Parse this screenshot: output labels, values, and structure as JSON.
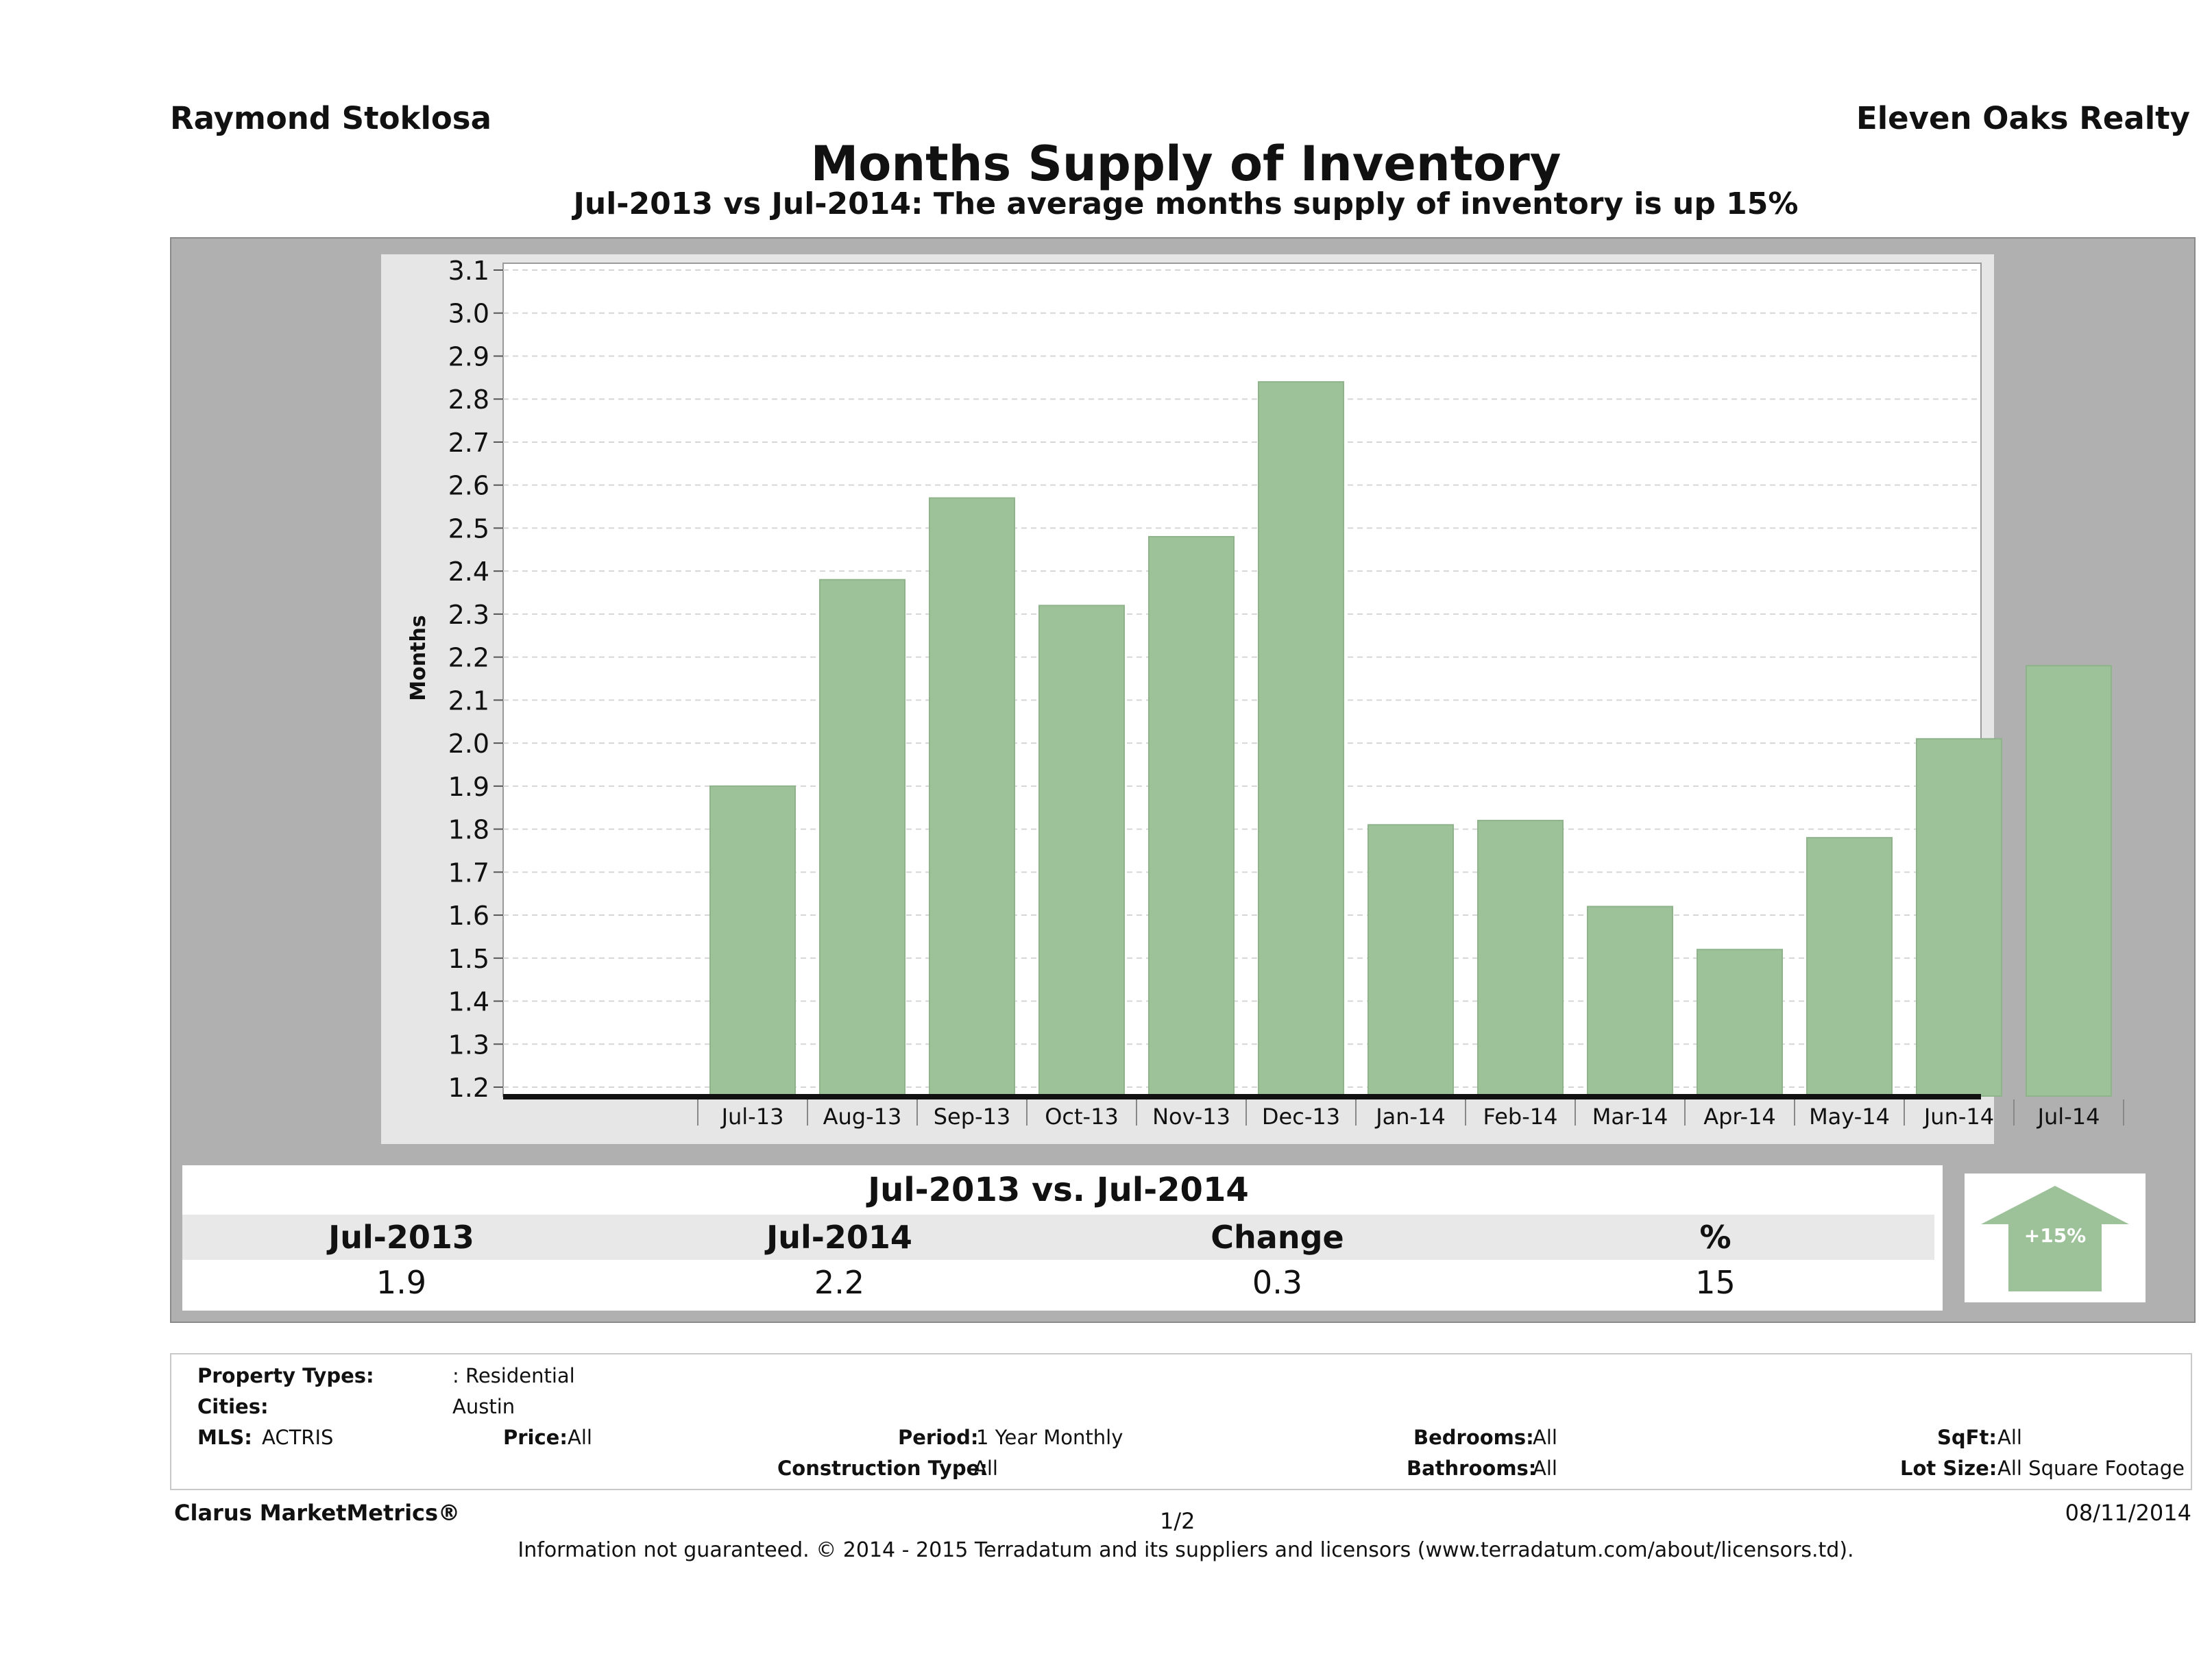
{
  "header": {
    "agent": "Raymond Stoklosa",
    "company": "Eleven Oaks Realty",
    "title": "Months Supply of Inventory",
    "subtitle": "Jul-2013 vs Jul-2014: The average months supply of inventory is up 15%"
  },
  "chart_data": {
    "type": "bar",
    "categories": [
      "Jul-13",
      "Aug-13",
      "Sep-13",
      "Oct-13",
      "Nov-13",
      "Dec-13",
      "Jan-14",
      "Feb-14",
      "Mar-14",
      "Apr-14",
      "May-14",
      "Jun-14",
      "Jul-14"
    ],
    "values": [
      1.9,
      2.38,
      2.57,
      2.32,
      2.48,
      2.84,
      1.81,
      1.82,
      1.62,
      1.52,
      1.78,
      2.01,
      2.18
    ],
    "ylabel": "Months",
    "xlabel": "",
    "ylim": [
      1.2,
      3.1
    ],
    "yticks": [
      "1.2",
      "1.3",
      "1.4",
      "1.5",
      "1.6",
      "1.7",
      "1.8",
      "1.9",
      "2.0",
      "2.1",
      "2.2",
      "2.3",
      "2.4",
      "2.5",
      "2.6",
      "2.7",
      "2.8",
      "2.9",
      "3.0",
      "3.1"
    ],
    "grid": true,
    "bar_color": "#9dc29a"
  },
  "summary": {
    "title": "Jul-2013 vs. Jul-2014",
    "headers": [
      "Jul-2013",
      "Jul-2014",
      "Change",
      "%"
    ],
    "values": [
      "1.9",
      "2.2",
      "0.3",
      "15"
    ],
    "badge": "+15%",
    "badge_icon": "up-arrow-icon"
  },
  "filters": {
    "property_types_label": "Property Types:",
    "property_types_value": ": Residential",
    "cities_label": "Cities:",
    "cities_value": "Austin",
    "mls_label": "MLS:",
    "mls_value": "ACTRIS",
    "price_label": "Price:",
    "price_value": "All",
    "period_label": "Period:",
    "period_value": "1 Year Monthly",
    "construction_label": "Construction Type:",
    "construction_value": "All",
    "bedrooms_label": "Bedrooms:",
    "bedrooms_value": "All",
    "bathrooms_label": "Bathrooms:",
    "bathrooms_value": "All",
    "sqft_label": "SqFt:",
    "sqft_value": "All",
    "lotsize_label": "Lot Size:",
    "lotsize_value": "All Square Footage"
  },
  "footer": {
    "brand": "Clarus MarketMetrics®",
    "page": "1/2",
    "date": "08/11/2014",
    "disclaimer": "Information not guaranteed. © 2014 - 2015 Terradatum and its suppliers and licensors (www.terradatum.com/about/licensors.td)."
  }
}
